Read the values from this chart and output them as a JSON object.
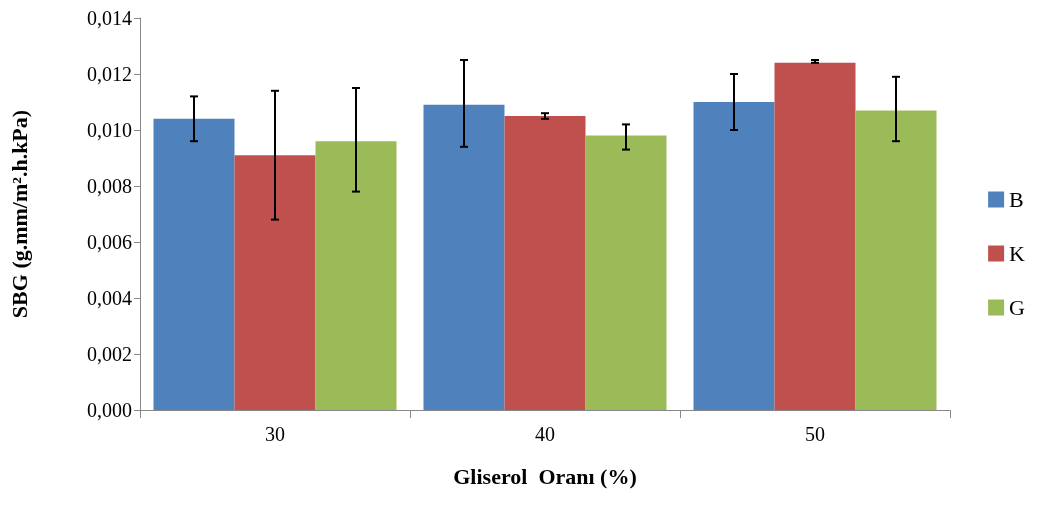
{
  "chart_data": {
    "type": "bar",
    "xlabel": "Gliserol  Oranı (%)",
    "ylabel": "SBG (g.mm/m².h.kPa)",
    "categories": [
      "30",
      "40",
      "50"
    ],
    "series": [
      {
        "name": "B",
        "color": "#4f81bd",
        "values": [
          0.0104,
          0.0109,
          0.011
        ],
        "errors": [
          [
            0.0096,
            0.0112
          ],
          [
            0.0094,
            0.0125
          ],
          [
            0.01,
            0.012
          ]
        ]
      },
      {
        "name": "K",
        "color": "#c0504d",
        "values": [
          0.0091,
          0.0105,
          0.0124
        ],
        "errors": [
          [
            0.0068,
            0.0114
          ],
          [
            0.0104,
            0.0106
          ],
          [
            0.0124,
            0.0125
          ]
        ]
      },
      {
        "name": "G",
        "color": "#9bbb59",
        "values": [
          0.0096,
          0.0098,
          0.0107
        ],
        "errors": [
          [
            0.0078,
            0.0115
          ],
          [
            0.0093,
            0.0102
          ],
          [
            0.0096,
            0.0119
          ]
        ]
      }
    ],
    "ylim": [
      0,
      0.014
    ],
    "yticks": [
      {
        "value": 0,
        "label": "0,000"
      },
      {
        "value": 0.002,
        "label": "0,002"
      },
      {
        "value": 0.004,
        "label": "0,004"
      },
      {
        "value": 0.006,
        "label": "0,006"
      },
      {
        "value": 0.008,
        "label": "0,008"
      },
      {
        "value": 0.01,
        "label": "0,010"
      },
      {
        "value": 0.012,
        "label": "0,012"
      },
      {
        "value": 0.014,
        "label": "0,014"
      }
    ],
    "grid": false,
    "legend": "right"
  }
}
